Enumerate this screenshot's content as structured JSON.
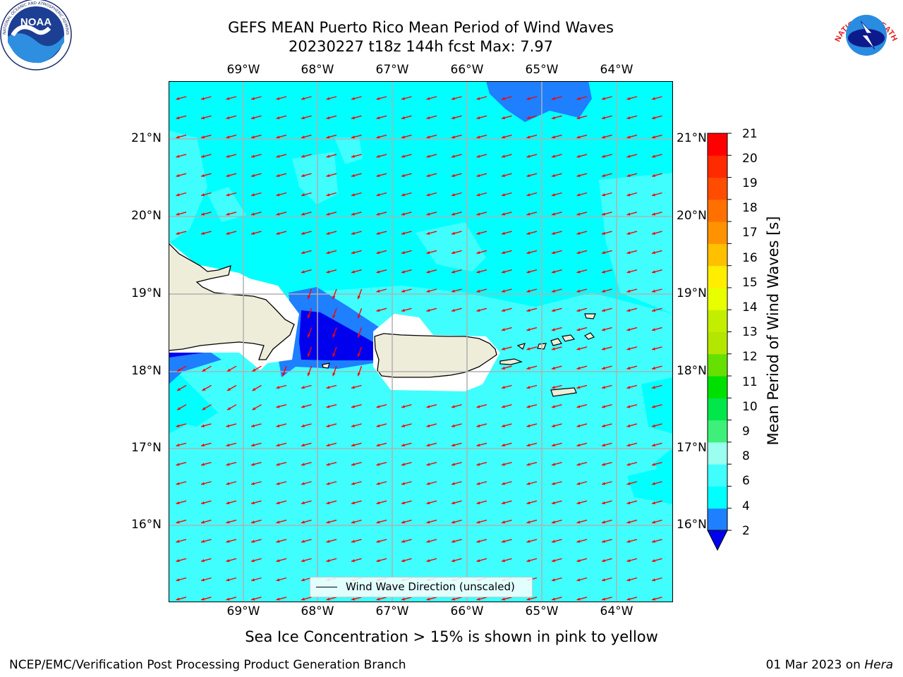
{
  "title": {
    "line1": "GEFS MEAN Puerto Rico Mean Period of Wind Waves",
    "line2": "20230227 t18z 144h fcst   Max: 7.97"
  },
  "axes": {
    "lon_labels": [
      "69°W",
      "68°W",
      "67°W",
      "66°W",
      "65°W",
      "64°W"
    ],
    "lat_labels": [
      "21°N",
      "20°N",
      "19°N",
      "18°N",
      "17°N",
      "16°N"
    ]
  },
  "colorbar": {
    "label": "Mean Period of Wind Waves [s]",
    "ticks": [
      "21",
      "20",
      "19",
      "18",
      "17",
      "16",
      "15",
      "14",
      "13",
      "12",
      "11",
      "10",
      "9",
      "8",
      "6",
      "4",
      "2"
    ],
    "colors": [
      "#0000ee",
      "#1e7fff",
      "#00ffff",
      "#40fefe",
      "#9affef",
      "#3ef07a",
      "#00e64b",
      "#00e000",
      "#66e000",
      "#b3e600",
      "#c3ee00",
      "#e8ff00",
      "#ffee00",
      "#ffc000",
      "#ff9200",
      "#ff7000",
      "#ff4c00",
      "#ff2a00",
      "#ff0000"
    ]
  },
  "legend": {
    "text": "Wind Wave Direction (unscaled)"
  },
  "note": "Sea Ice Concentration > 15% is shown in pink to yellow",
  "footer": {
    "left": "NCEP/EMC/Verification Post Processing Product Generation Branch",
    "date": "01 Mar 2023 on ",
    "machine": "Hera"
  },
  "logos": {
    "left": "NOAA",
    "right": "NATIONAL WEATHER SERVICE"
  }
}
